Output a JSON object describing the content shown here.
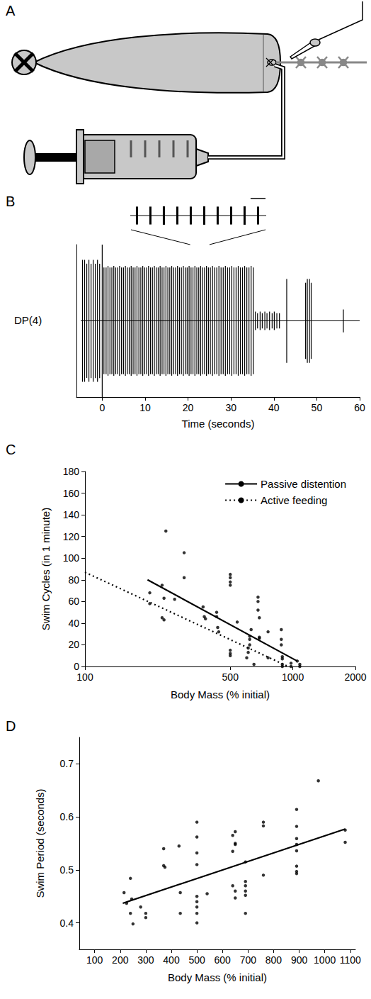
{
  "chart_data": [
    {
      "panel": "A",
      "type": "diagram"
    },
    {
      "panel": "B",
      "type": "trace",
      "xlabel": "Time (seconds)",
      "ylabel": "DP(4)",
      "xlim": [
        -6,
        60
      ],
      "xticks": [
        0,
        10,
        20,
        30,
        40,
        50,
        60
      ],
      "ylim": [
        -1,
        1
      ],
      "tick_labels": "x",
      "grid": false,
      "color": "#000000",
      "baseline": {
        "x": [
          -5,
          60
        ],
        "y": 0
      },
      "bursts": [
        [
          -4.6,
          0.8
        ],
        [
          -4.1,
          0.8
        ],
        [
          -3.6,
          0.75
        ],
        [
          -3.1,
          0.8
        ],
        [
          -2.6,
          0.75
        ],
        [
          -2.1,
          0.8
        ],
        [
          -1.6,
          0.75
        ],
        [
          -1.1,
          0.8
        ],
        [
          -0.6,
          0.75
        ],
        [
          0,
          1.0
        ],
        [
          0.4,
          0.7
        ],
        [
          0.9,
          0.7
        ],
        [
          1.35,
          0.72
        ],
        [
          1.8,
          0.7
        ],
        [
          2.25,
          0.7
        ],
        [
          2.7,
          0.72
        ],
        [
          3.15,
          0.7
        ],
        [
          3.6,
          0.7
        ],
        [
          4.05,
          0.72
        ],
        [
          4.5,
          0.7
        ],
        [
          4.95,
          0.7
        ],
        [
          5.4,
          0.72
        ],
        [
          5.85,
          0.7
        ],
        [
          6.3,
          0.7
        ],
        [
          6.75,
          0.72
        ],
        [
          7.2,
          0.7
        ],
        [
          7.65,
          0.7
        ],
        [
          8.1,
          0.72
        ],
        [
          8.55,
          0.7
        ],
        [
          9.0,
          0.7
        ],
        [
          9.45,
          0.72
        ],
        [
          9.9,
          0.7
        ],
        [
          10.35,
          0.7
        ],
        [
          10.8,
          0.72
        ],
        [
          11.25,
          0.7
        ],
        [
          11.7,
          0.7
        ],
        [
          12.15,
          0.72
        ],
        [
          12.6,
          0.7
        ],
        [
          13.05,
          0.7
        ],
        [
          13.5,
          0.72
        ],
        [
          13.95,
          0.7
        ],
        [
          14.4,
          0.7
        ],
        [
          14.85,
          0.72
        ],
        [
          15.3,
          0.7
        ],
        [
          15.75,
          0.7
        ],
        [
          16.2,
          0.72
        ],
        [
          16.65,
          0.7
        ],
        [
          17.1,
          0.7
        ],
        [
          17.55,
          0.72
        ],
        [
          18.0,
          0.7
        ],
        [
          18.45,
          0.7
        ],
        [
          18.9,
          0.72
        ],
        [
          19.35,
          0.7
        ],
        [
          19.8,
          0.7
        ],
        [
          20.25,
          0.72
        ],
        [
          20.7,
          0.7
        ],
        [
          21.15,
          0.7
        ],
        [
          21.6,
          0.72
        ],
        [
          22.05,
          0.7
        ],
        [
          22.5,
          0.7
        ],
        [
          22.95,
          0.72
        ],
        [
          23.4,
          0.7
        ],
        [
          23.85,
          0.7
        ],
        [
          24.3,
          0.72
        ],
        [
          24.75,
          0.7
        ],
        [
          25.2,
          0.7
        ],
        [
          25.7,
          0.72
        ],
        [
          26.2,
          0.7
        ],
        [
          26.7,
          0.7
        ],
        [
          27.2,
          0.72
        ],
        [
          27.7,
          0.7
        ],
        [
          28.2,
          0.7
        ],
        [
          28.7,
          0.72
        ],
        [
          29.2,
          0.7
        ],
        [
          29.7,
          0.7
        ],
        [
          30.2,
          0.72
        ],
        [
          30.7,
          0.7
        ],
        [
          31.2,
          0.7
        ],
        [
          31.7,
          0.72
        ],
        [
          32.2,
          0.7
        ],
        [
          32.7,
          0.7
        ],
        [
          33.2,
          0.72
        ],
        [
          33.7,
          0.7
        ],
        [
          34.2,
          0.7
        ],
        [
          34.7,
          0.72
        ],
        [
          35.2,
          0.7
        ],
        [
          35.7,
          0.12
        ],
        [
          36.2,
          0.1
        ],
        [
          36.8,
          0.12
        ],
        [
          37.3,
          0.1
        ],
        [
          37.9,
          0.12
        ],
        [
          38.4,
          0.1
        ],
        [
          39.0,
          0.12
        ],
        [
          39.6,
          0.1
        ],
        [
          40.1,
          0.12
        ],
        [
          40.7,
          0.1
        ],
        [
          41.3,
          0.1
        ],
        [
          43.0,
          0.55
        ],
        [
          47.4,
          0.5
        ],
        [
          47.8,
          0.55
        ],
        [
          48.3,
          0.55
        ],
        [
          48.7,
          0.5
        ],
        [
          56.2,
          0.15
        ]
      ],
      "inset": {
        "xlim": [
          20.5,
          25
        ],
        "scale_bar": 0.5
      }
    },
    {
      "panel": "C",
      "type": "scatter",
      "xlabel": "Body Mass (% initial)",
      "ylabel": "Swim Cycles (in 1 minute)",
      "log": "x",
      "xlim": [
        100,
        2000
      ],
      "xticks": [
        100,
        500,
        1000,
        2000
      ],
      "ylim": [
        0,
        180
      ],
      "yticks": [
        0,
        20,
        40,
        60,
        80,
        100,
        120,
        140,
        160,
        180
      ],
      "grid": false,
      "legend": "upper right",
      "points": {
        "color": "#000000",
        "marker": "circle",
        "x": [
          205,
          205,
          235,
          235,
          240,
          240,
          245,
          270,
          300,
          300,
          370,
          375,
          380,
          430,
          430,
          435,
          440,
          500,
          500,
          500,
          500,
          500,
          500,
          500,
          540,
          600,
          610,
          610,
          620,
          620,
          620,
          630,
          650,
          680,
          680,
          680,
          690,
          690,
          690,
          760,
          760,
          880,
          880,
          880,
          890,
          890,
          890,
          890,
          980,
          980,
          1050,
          1080,
          1080
        ],
        "y": [
          58,
          68,
          75,
          45,
          43,
          63,
          125,
          62,
          105,
          82,
          55,
          46,
          44,
          50,
          46,
          36,
          32,
          85,
          82,
          78,
          75,
          15,
          12,
          10,
          41,
          8,
          17,
          13,
          25,
          28,
          20,
          34,
          2,
          64,
          60,
          52,
          45,
          27,
          26,
          32,
          8,
          34,
          25,
          20,
          9,
          7,
          2,
          0,
          3,
          0,
          5,
          2,
          0
        ]
      },
      "series": [
        {
          "name": "Passive distention",
          "type": "line",
          "line_style": "solid",
          "color": "#000000",
          "x": [
            200,
            1050
          ],
          "values": [
            80,
            5
          ]
        },
        {
          "name": "Active feeding",
          "type": "line",
          "line_style": "dotted",
          "color": "#000000",
          "x": [
            100,
            950
          ],
          "values": [
            87,
            0
          ]
        }
      ]
    },
    {
      "panel": "D",
      "type": "scatter",
      "xlabel": "Body Mass (% initial)",
      "ylabel": "Swim Period (seconds)",
      "xlim": [
        40,
        1120
      ],
      "xticks": [
        100,
        200,
        300,
        400,
        500,
        600,
        700,
        800,
        900,
        1000,
        1100
      ],
      "ylim": [
        0.35,
        0.75
      ],
      "yticks": [
        0.4,
        0.5,
        0.6,
        0.7
      ],
      "grid": false,
      "points": {
        "color": "#000000",
        "marker": "circle",
        "x": [
          215,
          225,
          240,
          245,
          240,
          250,
          280,
          300,
          300,
          370,
          370,
          375,
          430,
          435,
          435,
          500,
          500,
          500,
          500,
          500,
          500,
          500,
          500,
          500,
          540,
          640,
          650,
          640,
          650,
          650,
          640,
          650,
          650,
          690,
          690,
          690,
          690,
          690,
          690,
          760,
          760,
          760,
          890,
          890,
          890,
          890,
          890,
          890,
          890,
          890,
          975,
          1080,
          1080
        ],
        "y": [
          0.457,
          0.437,
          0.484,
          0.445,
          0.418,
          0.398,
          0.43,
          0.418,
          0.41,
          0.54,
          0.508,
          0.505,
          0.545,
          0.457,
          0.418,
          0.59,
          0.562,
          0.532,
          0.51,
          0.45,
          0.44,
          0.43,
          0.418,
          0.4,
          0.455,
          0.565,
          0.572,
          0.535,
          0.548,
          0.55,
          0.47,
          0.46,
          0.447,
          0.515,
          0.478,
          0.47,
          0.46,
          0.452,
          0.418,
          0.59,
          0.583,
          0.49,
          0.614,
          0.582,
          0.559,
          0.548,
          0.536,
          0.507,
          0.497,
          0.493,
          0.668,
          0.575,
          0.552
        ]
      },
      "series": [
        {
          "type": "line",
          "line_style": "solid",
          "color": "#000000",
          "x": [
            210,
            1080
          ],
          "values": [
            0.437,
            0.577
          ]
        }
      ]
    }
  ]
}
